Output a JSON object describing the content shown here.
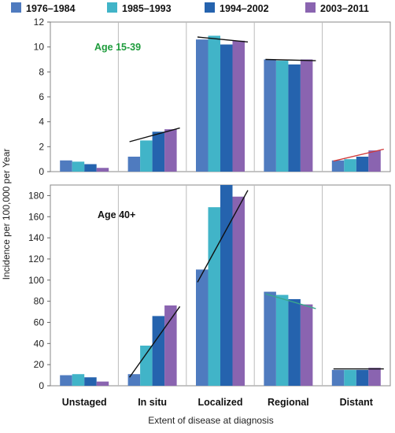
{
  "legend_position": "top",
  "xlabel": "Extent of disease at diagnosis",
  "ylabel": "Incidence per 100,000 per Year",
  "chart_data": [
    {
      "type": "bar",
      "panel_label": "Age 15-39",
      "panel_label_color": "#1e9c3c",
      "categories": [
        "Unstaged",
        "In situ",
        "Localized",
        "Regional",
        "Distant"
      ],
      "ylim": [
        0,
        12
      ],
      "yticks": [
        0,
        2,
        4,
        6,
        8,
        10,
        12
      ],
      "series": [
        {
          "name": "1976–1984",
          "color": "#4f7bbf",
          "values": [
            0.9,
            1.2,
            10.6,
            9.0,
            0.9
          ]
        },
        {
          "name": "1985–1993",
          "color": "#41b4c8",
          "values": [
            0.8,
            2.5,
            10.9,
            8.9,
            1.0
          ]
        },
        {
          "name": "1994–2002",
          "color": "#2563ae",
          "values": [
            0.6,
            3.2,
            10.2,
            8.6,
            1.2
          ]
        },
        {
          "name": "2003–2011",
          "color": "#8a64b0",
          "values": [
            0.3,
            3.4,
            10.5,
            9.0,
            1.7
          ]
        }
      ],
      "trend_lines": [
        {
          "category": "In situ",
          "color": "#111111",
          "from": 2.4,
          "to": 3.5
        },
        {
          "category": "Localized",
          "color": "#111111",
          "from": 10.8,
          "to": 10.4
        },
        {
          "category": "Regional",
          "color": "#111111",
          "from": 9.0,
          "to": 8.9
        },
        {
          "category": "Distant",
          "color": "#d03a3a",
          "from": 0.85,
          "to": 1.8
        }
      ]
    },
    {
      "type": "bar",
      "panel_label": "Age 40+",
      "panel_label_color": "#111111",
      "categories": [
        "Unstaged",
        "In situ",
        "Localized",
        "Regional",
        "Distant"
      ],
      "ylim": [
        0,
        190
      ],
      "yticks": [
        0,
        20,
        40,
        60,
        80,
        100,
        120,
        140,
        160,
        180
      ],
      "series": [
        {
          "name": "1976–1984",
          "color": "#4f7bbf",
          "values": [
            10,
            11,
            110,
            89,
            15
          ]
        },
        {
          "name": "1985–1993",
          "color": "#41b4c8",
          "values": [
            11,
            38,
            169,
            86,
            15
          ]
        },
        {
          "name": "1994–2002",
          "color": "#2563ae",
          "values": [
            8,
            66,
            190,
            82,
            15
          ]
        },
        {
          "name": "2003–2011",
          "color": "#8a64b0",
          "values": [
            4,
            76,
            179,
            77,
            17
          ]
        }
      ],
      "trend_lines": [
        {
          "category": "In situ",
          "color": "#111111",
          "from": 8,
          "to": 75
        },
        {
          "category": "Localized",
          "color": "#111111",
          "from": 98,
          "to": 185
        },
        {
          "category": "Regional",
          "color": "#3aa88c",
          "from": 87,
          "to": 73
        },
        {
          "category": "Distant",
          "color": "#111111",
          "from": 16,
          "to": 16
        }
      ]
    }
  ]
}
